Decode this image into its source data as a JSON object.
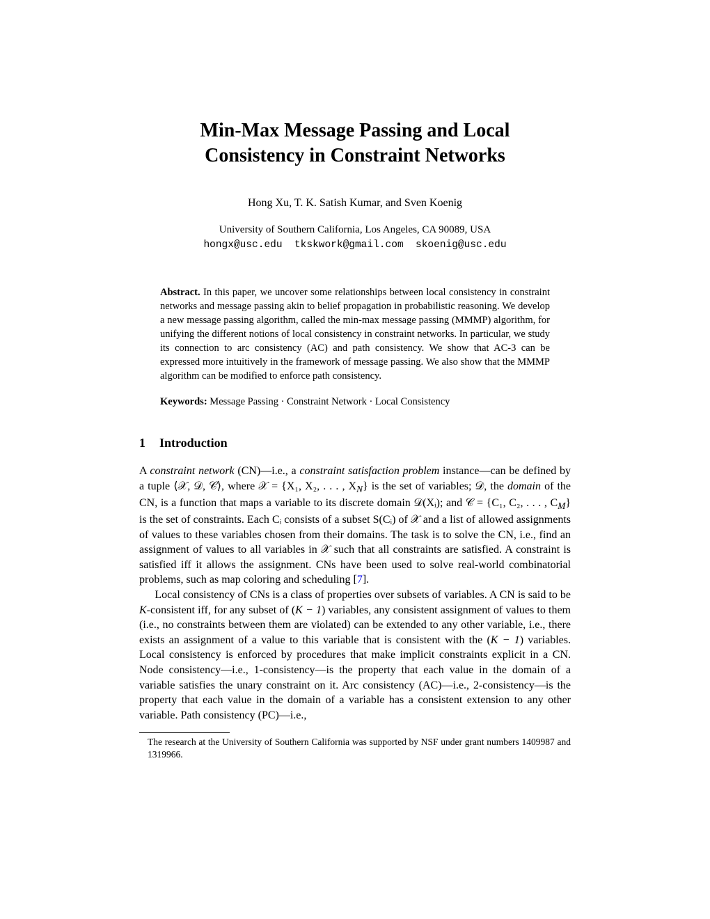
{
  "title_line1": "Min-Max Message Passing and Local",
  "title_line2": "Consistency in Constraint Networks",
  "authors": "Hong Xu, T. K. Satish Kumar, and Sven Koenig",
  "affiliation": "University of Southern California, Los Angeles, CA 90089, USA",
  "email1": "hongx@usc.edu",
  "email2": "tkskwork@gmail.com",
  "email3": "skoenig@usc.edu",
  "abstract_label": "Abstract.",
  "abstract_text": " In this paper, we uncover some relationships between local consistency in constraint networks and message passing akin to belief propagation in probabilistic reasoning. We develop a new message passing algorithm, called the min-max message passing (MMMP) algorithm, for unifying the different notions of local consistency in constraint networks. In particular, we study its connection to arc consistency (AC) and path consistency. We show that AC-3 can be expressed more intuitively in the framework of message passing. We also show that the MMMP algorithm can be modified to enforce path consistency.",
  "keywords_label": "Keywords:",
  "keywords_text": " Message Passing · Constraint Network · Local Consistency",
  "section1_number": "1",
  "section1_title": "Introduction",
  "para1_a": "A ",
  "para1_cn": "constraint network",
  "para1_b": " (CN)—i.e., a ",
  "para1_csp": "constraint satisfaction problem",
  "para1_c": " instance—can be defined by a tuple ⟨𝒳, 𝒟, 𝒞⟩, where 𝒳 = {X₁, X₂, . . . , X",
  "para1_N": "N",
  "para1_d": "} is the set of variables; 𝒟, the ",
  "para1_domain": "domain",
  "para1_e": " of the CN, is a function that maps a variable to its discrete domain 𝒟(Xᵢ); and 𝒞 = {C₁, C₂, . . . , C",
  "para1_M": "M",
  "para1_f": "} is the set of constraints. Each Cᵢ consists of a subset S(Cᵢ) of 𝒳 and a list of allowed assignments of values to these variables chosen from their domains. The task is to solve the CN, i.e., find an assignment of values to all variables in 𝒳 such that all constraints are satisfied. A constraint is satisfied iff it allows the assignment. CNs have been used to solve real-world combinatorial problems, such as map coloring and scheduling [",
  "para1_ref": "7",
  "para1_g": "].",
  "para2_a": "Local consistency of CNs is a class of properties over subsets of variables. A CN is said to be ",
  "para2_K": "K",
  "para2_b": "-consistent iff, for any subset of (",
  "para2_Km1a": "K − 1",
  "para2_c": ") variables, any consistent assignment of values to them (i.e., no constraints between them are violated) can be extended to any other variable, i.e., there exists an assignment of a value to this variable that is consistent with the (",
  "para2_Km1b": "K − 1",
  "para2_d": ") variables. Local consistency is enforced by procedures that make implicit constraints explicit in a CN. Node consistency—i.e., 1-consistency—is the property that each value in the domain of a variable satisfies the unary constraint on it. Arc consistency (AC)—i.e., 2-consistency—is the property that each value in the domain of a variable has a consistent extension to any other variable. Path consistency (PC)—i.e.,",
  "footnote": "The research at the University of Southern California was supported by NSF under grant numbers 1409987 and 1319966."
}
